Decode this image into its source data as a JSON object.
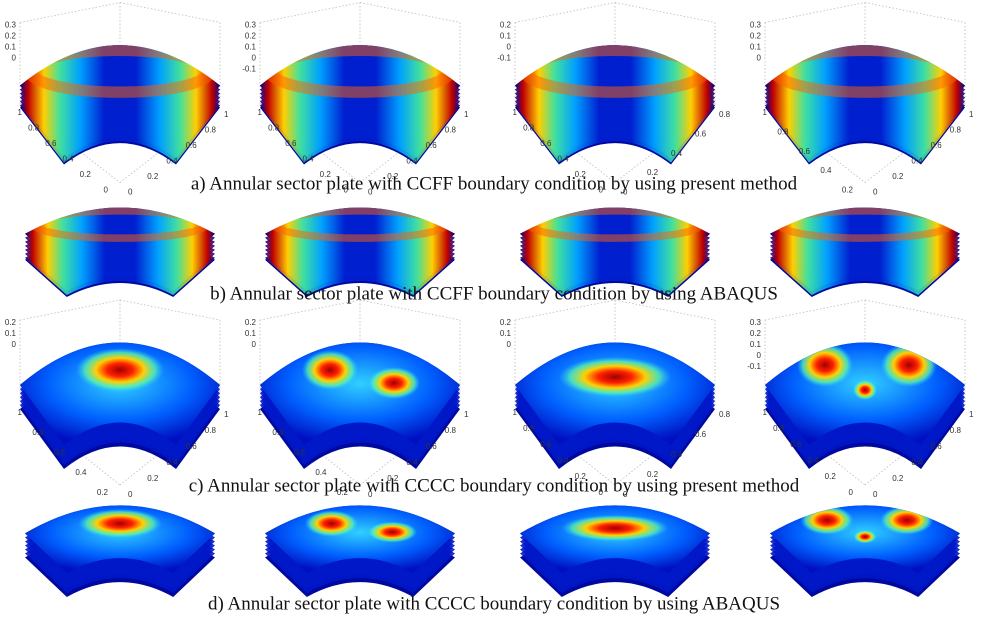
{
  "rows": [
    {
      "caption": "a) Annular sector plate with CCFF boundary condition by using present method",
      "plots": [
        {
          "z_ticks": [
            "0.3",
            "0.2",
            "0.1",
            "0"
          ],
          "left_ticks": [
            "1",
            "0.8",
            "0.6",
            "0.4",
            "0.2",
            "0"
          ],
          "right_ticks": [
            "0",
            "0.2",
            "0.4",
            "0.6",
            "0.8",
            "1"
          ]
        },
        {
          "z_ticks": [
            "0.3",
            "0.2",
            "0.1",
            "0",
            "-0.1"
          ],
          "left_ticks": [
            "1",
            "0.8",
            "0.6",
            "0.4",
            "0.2",
            "0"
          ],
          "right_ticks": [
            "0",
            "0.2",
            "0.4",
            "0.6",
            "0.8",
            "1"
          ]
        },
        {
          "z_ticks": [
            "0.2",
            "0.1",
            "0",
            "-0.1"
          ],
          "left_ticks": [
            "1",
            "0.8",
            "0.6",
            "0.4",
            "0.2",
            "0"
          ],
          "right_ticks": [
            "0",
            "0.2",
            "0.4",
            "0.6",
            "0.8"
          ]
        },
        {
          "z_ticks": [
            "0.3",
            "0.2",
            "0.1",
            "0"
          ],
          "left_ticks": [
            "1",
            "0.8",
            "0.6",
            "0.4",
            "0.2"
          ],
          "right_ticks": [
            "0",
            "0.2",
            "0.4",
            "0.6",
            "0.8",
            "1"
          ]
        }
      ]
    },
    {
      "caption": "b) Annular sector plate with CCFF boundary condition by using ABAQUS"
    },
    {
      "caption": "c) Annular sector plate with CCCC boundary condition by using present method",
      "plots": [
        {
          "z_ticks": [
            "0.2",
            "0.1",
            "0"
          ],
          "left_ticks": [
            "1",
            "0.8",
            "0.6",
            "0.4",
            "0.2"
          ],
          "right_ticks": [
            "0",
            "0.2",
            "0.4",
            "0.6",
            "0.8",
            "1"
          ]
        },
        {
          "z_ticks": [
            "0.2",
            "0.1",
            "0"
          ],
          "left_ticks": [
            "1",
            "0.8",
            "0.6",
            "0.4",
            "0.2"
          ],
          "right_ticks": [
            "0",
            "0.2",
            "0.4",
            "0.6",
            "0.8",
            "1"
          ]
        },
        {
          "z_ticks": [
            "0.2",
            "0.1",
            "0"
          ],
          "left_ticks": [
            "1",
            "0.8",
            "0.6",
            "0.4",
            "0.2",
            "0"
          ],
          "right_ticks": [
            "0",
            "0.2",
            "0.4",
            "0.6",
            "0.8"
          ]
        },
        {
          "z_ticks": [
            "0.3",
            "0.2",
            "0.1",
            "0",
            "-0.1"
          ],
          "left_ticks": [
            "1",
            "0.8",
            "0.6",
            "0.4",
            "0.2",
            "0"
          ],
          "right_ticks": [
            "0",
            "0.2",
            "0.4",
            "0.6",
            "0.8",
            "1"
          ]
        }
      ]
    },
    {
      "caption": "d) Annular sector plate with CCCC boundary condition by using ABAQUS"
    }
  ]
}
